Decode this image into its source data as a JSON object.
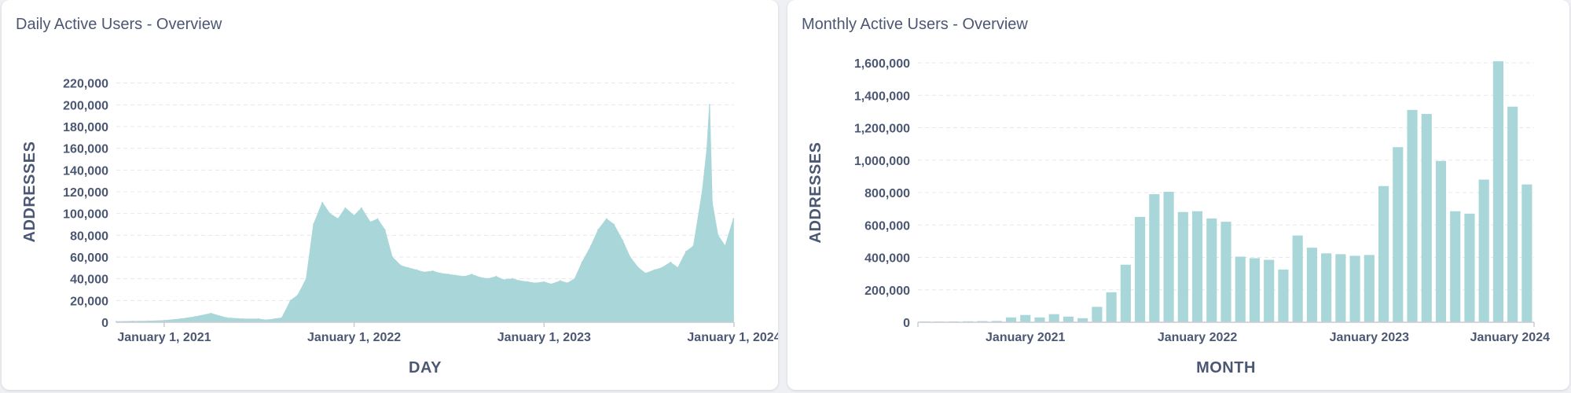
{
  "chart_data": [
    {
      "type": "area",
      "title": "Daily Active Users - Overview",
      "xlabel": "DAY",
      "ylabel": "ADDRESSES",
      "ylim": [
        0,
        240000
      ],
      "yticks": [
        0,
        20000,
        40000,
        60000,
        80000,
        100000,
        120000,
        140000,
        160000,
        180000,
        200000,
        220000
      ],
      "ytick_labels": [
        "0",
        "20,000",
        "40,000",
        "60,000",
        "80,000",
        "100,000",
        "120,000",
        "140,000",
        "160,000",
        "180,000",
        "200,000",
        "220,000"
      ],
      "xlim": [
        "2020-10-01",
        "2024-01-01"
      ],
      "xticks": [
        "2021-01-01",
        "2022-01-01",
        "2023-01-01",
        "2024-01-01"
      ],
      "xtick_labels": [
        "January 1, 2021",
        "January 1, 2022",
        "January 1, 2023",
        "January 1, 2024"
      ],
      "color": "#a9d6d8",
      "grid": true,
      "x": [
        "2020-10-01",
        "2020-11-01",
        "2020-12-01",
        "2021-01-01",
        "2021-02-01",
        "2021-03-01",
        "2021-04-01",
        "2021-05-01",
        "2021-06-01",
        "2021-07-01",
        "2021-07-15",
        "2021-08-01",
        "2021-08-15",
        "2021-09-01",
        "2021-09-15",
        "2021-10-01",
        "2021-10-15",
        "2021-11-01",
        "2021-11-15",
        "2021-12-01",
        "2021-12-15",
        "2022-01-01",
        "2022-01-15",
        "2022-02-01",
        "2022-02-15",
        "2022-03-01",
        "2022-03-15",
        "2022-04-01",
        "2022-04-15",
        "2022-05-01",
        "2022-05-15",
        "2022-06-01",
        "2022-06-15",
        "2022-07-01",
        "2022-07-15",
        "2022-08-01",
        "2022-08-15",
        "2022-09-01",
        "2022-09-15",
        "2022-10-01",
        "2022-10-15",
        "2022-11-01",
        "2022-11-15",
        "2022-12-01",
        "2022-12-15",
        "2023-01-01",
        "2023-01-15",
        "2023-02-01",
        "2023-02-15",
        "2023-03-01",
        "2023-03-15",
        "2023-04-01",
        "2023-04-15",
        "2023-05-01",
        "2023-05-15",
        "2023-06-01",
        "2023-06-15",
        "2023-07-01",
        "2023-07-15",
        "2023-08-01",
        "2023-08-15",
        "2023-09-01",
        "2023-09-15",
        "2023-10-01",
        "2023-10-15",
        "2023-11-01",
        "2023-11-10",
        "2023-11-15",
        "2023-11-20",
        "2023-12-01",
        "2023-12-15",
        "2023-12-31"
      ],
      "values": [
        500,
        800,
        1000,
        1500,
        3000,
        5000,
        8000,
        4000,
        3000,
        3000,
        2000,
        3000,
        4000,
        20000,
        25000,
        40000,
        90000,
        110000,
        100000,
        95000,
        105000,
        98000,
        105000,
        92000,
        95000,
        85000,
        60000,
        52000,
        50000,
        48000,
        46000,
        47000,
        45000,
        44000,
        43000,
        42000,
        44000,
        41000,
        40000,
        42000,
        39000,
        40000,
        38000,
        37000,
        36000,
        37000,
        35000,
        38000,
        36000,
        40000,
        55000,
        70000,
        85000,
        95000,
        90000,
        75000,
        60000,
        50000,
        45000,
        48000,
        50000,
        55000,
        50000,
        65000,
        70000,
        120000,
        160000,
        200000,
        110000,
        80000,
        70000,
        95000
      ]
    },
    {
      "type": "bar",
      "title": "Monthly Active Users - Overview",
      "xlabel": "MONTH",
      "ylabel": "ADDRESSES",
      "ylim": [
        0,
        1600000
      ],
      "yticks": [
        0,
        200000,
        400000,
        600000,
        800000,
        1000000,
        1200000,
        1400000,
        1600000
      ],
      "ytick_labels": [
        "0",
        "200,000",
        "400,000",
        "600,000",
        "800,000",
        "1,000,000",
        "1,200,000",
        "1,400,000",
        "1,600,000"
      ],
      "xticks": [
        "2021-01",
        "2022-01",
        "2023-01",
        "2024-01"
      ],
      "xtick_labels": [
        "January 2021",
        "January 2022",
        "January 2023",
        "January 2024"
      ],
      "color": "#a9d6d8",
      "grid": true,
      "categories": [
        "2020-06",
        "2020-07",
        "2020-08",
        "2020-09",
        "2020-10",
        "2020-11",
        "2020-12",
        "2021-01",
        "2021-02",
        "2021-03",
        "2021-04",
        "2021-05",
        "2021-06",
        "2021-07",
        "2021-08",
        "2021-09",
        "2021-10",
        "2021-11",
        "2021-12",
        "2022-01",
        "2022-02",
        "2022-03",
        "2022-04",
        "2022-05",
        "2022-06",
        "2022-07",
        "2022-08",
        "2022-09",
        "2022-10",
        "2022-11",
        "2022-12",
        "2023-01",
        "2023-02",
        "2023-03",
        "2023-04",
        "2023-05",
        "2023-06",
        "2023-07",
        "2023-08",
        "2023-09",
        "2023-10",
        "2023-11",
        "2023-12"
      ],
      "values": [
        3000,
        4000,
        5000,
        6000,
        7000,
        8000,
        30000,
        45000,
        30000,
        50000,
        35000,
        25000,
        95000,
        185000,
        355000,
        650000,
        790000,
        805000,
        680000,
        685000,
        640000,
        620000,
        405000,
        395000,
        385000,
        325000,
        535000,
        460000,
        425000,
        420000,
        410000,
        415000,
        840000,
        1080000,
        1310000,
        1285000,
        995000,
        685000,
        670000,
        880000,
        1610000,
        1330000,
        850000
      ]
    }
  ]
}
